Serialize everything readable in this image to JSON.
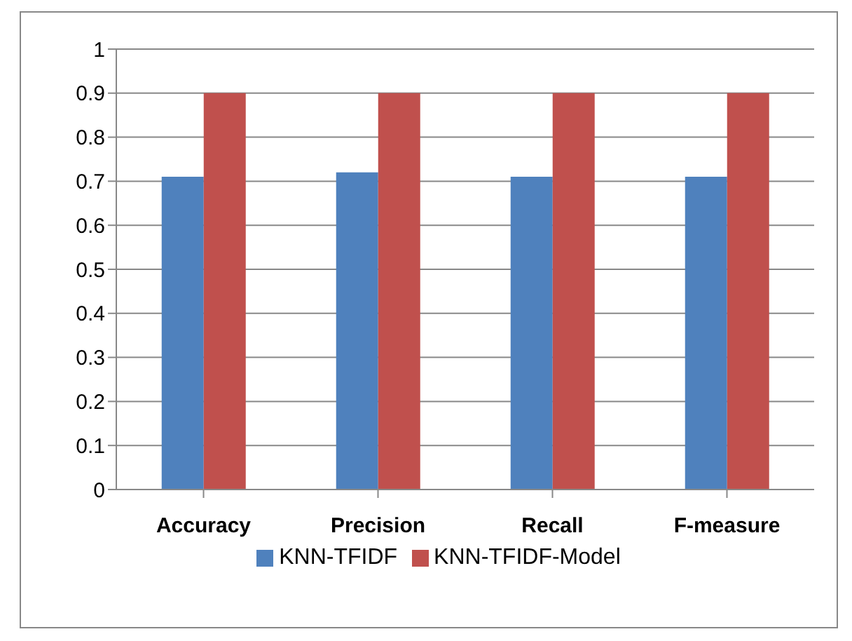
{
  "chart_data": {
    "type": "bar",
    "categories": [
      "Accuracy",
      "Precision",
      "Recall",
      "F-measure"
    ],
    "series": [
      {
        "name": "KNN-TFIDF",
        "color": "#4f81bd",
        "values": [
          0.71,
          0.72,
          0.71,
          0.71
        ]
      },
      {
        "name": "KNN-TFIDF-Model",
        "color": "#c0504d",
        "values": [
          0.9,
          0.9,
          0.9,
          0.9
        ]
      }
    ],
    "ylim": [
      0,
      1
    ],
    "yticks": [
      0,
      0.1,
      0.2,
      0.3,
      0.4,
      0.5,
      0.6,
      0.7,
      0.8,
      0.9,
      1
    ],
    "grid": "y",
    "legend": "bottom"
  }
}
